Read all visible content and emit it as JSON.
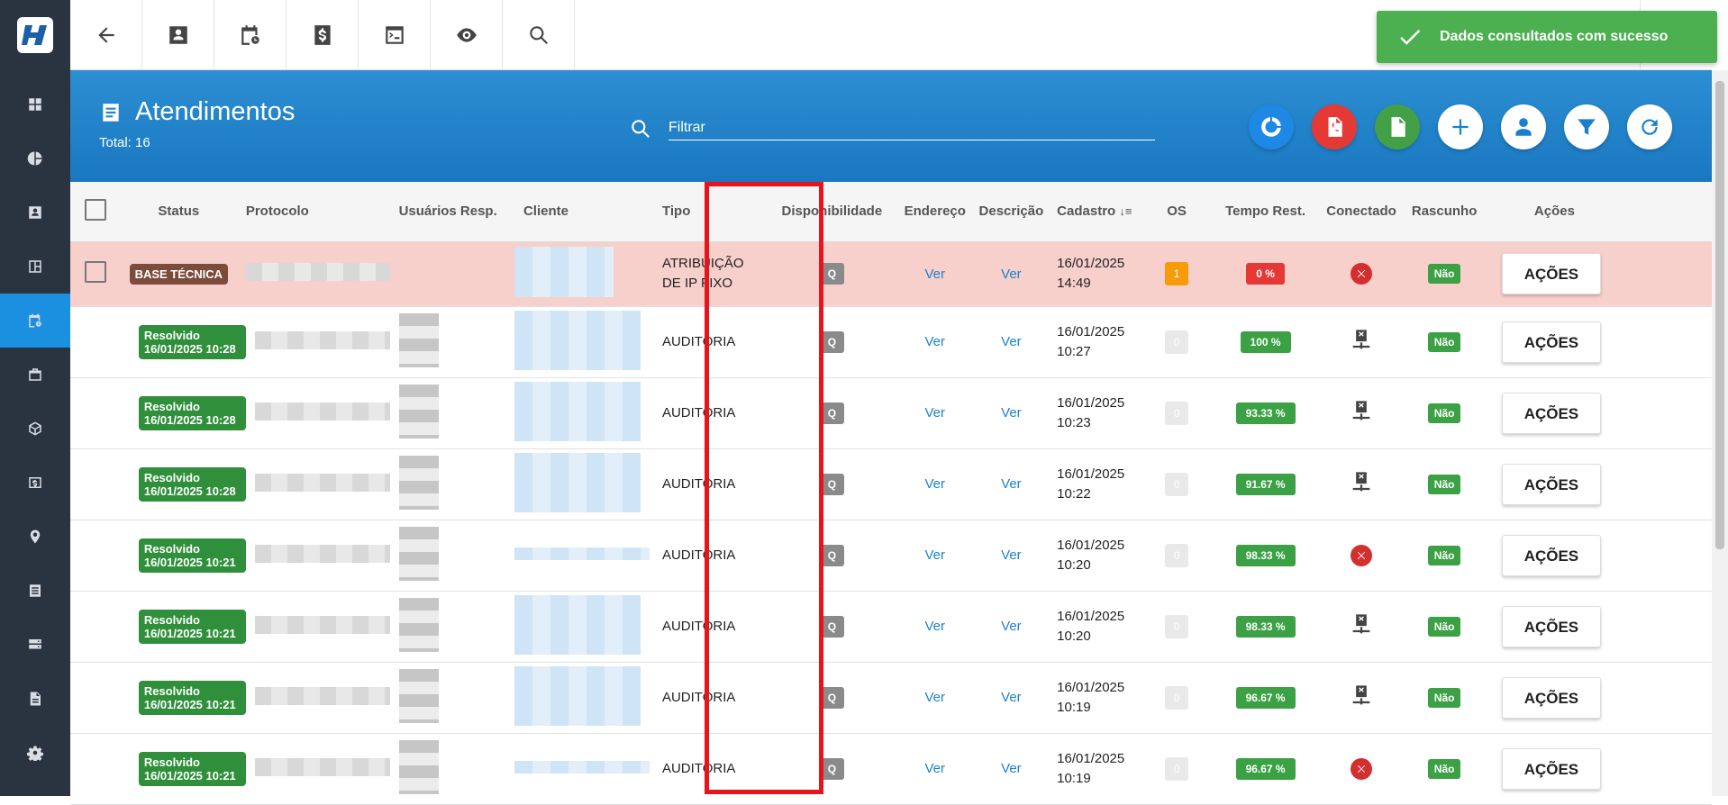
{
  "toast": {
    "text": "Dados consultados com sucesso"
  },
  "header": {
    "title": "Atendimentos",
    "total": "Total: 16",
    "filter_placeholder": "Filtrar"
  },
  "columns": {
    "status": "Status",
    "protocolo": "Protocolo",
    "usuarios": "Usuários Resp.",
    "cliente": "Cliente",
    "tipo": "Tipo",
    "disponibilidade": "Disponibilidade",
    "endereco": "Endereço",
    "descricao": "Descrição",
    "cadastro": "Cadastro",
    "os": "OS",
    "tempo": "Tempo Rest.",
    "conectado": "Conectado",
    "rascunho": "Rascunho",
    "acoes": "Ações"
  },
  "rows": [
    {
      "status": "BASE TÉCNICA",
      "tipo": "ATRIBUIÇÃO DE IP FIXO",
      "disp": "Q",
      "endereco": "Ver",
      "descricao": "Ver",
      "cad_date": "16/01/2025",
      "cad_time": "14:49",
      "os": "1",
      "tempo": "0 %",
      "conectado": "offline-red",
      "rascunho": "Não",
      "acoes": "AÇÕES"
    },
    {
      "status": "Resolvido 16/01/2025 10:28",
      "tipo": "AUDITORIA",
      "disp": "Q",
      "endereco": "Ver",
      "descricao": "Ver",
      "cad_date": "16/01/2025",
      "cad_time": "10:27",
      "os": "0",
      "tempo": "100 %",
      "conectado": "network-x",
      "rascunho": "Não",
      "acoes": "AÇÕES"
    },
    {
      "status": "Resolvido 16/01/2025 10:28",
      "tipo": "AUDITORIA",
      "disp": "Q",
      "endereco": "Ver",
      "descricao": "Ver",
      "cad_date": "16/01/2025",
      "cad_time": "10:23",
      "os": "0",
      "tempo": "93.33 %",
      "conectado": "network-x",
      "rascunho": "Não",
      "acoes": "AÇÕES"
    },
    {
      "status": "Resolvido 16/01/2025 10:28",
      "tipo": "AUDITORIA",
      "disp": "Q",
      "endereco": "Ver",
      "descricao": "Ver",
      "cad_date": "16/01/2025",
      "cad_time": "10:22",
      "os": "0",
      "tempo": "91.67 %",
      "conectado": "network-x",
      "rascunho": "Não",
      "acoes": "AÇÕES"
    },
    {
      "status": "Resolvido 16/01/2025 10:21",
      "tipo": "AUDITORIA",
      "disp": "Q",
      "endereco": "Ver",
      "descricao": "Ver",
      "cad_date": "16/01/2025",
      "cad_time": "10:20",
      "os": "0",
      "tempo": "98.33 %",
      "conectado": "offline-red",
      "rascunho": "Não",
      "acoes": "AÇÕES"
    },
    {
      "status": "Resolvido 16/01/2025 10:21",
      "tipo": "AUDITORIA",
      "disp": "Q",
      "endereco": "Ver",
      "descricao": "Ver",
      "cad_date": "16/01/2025",
      "cad_time": "10:20",
      "os": "0",
      "tempo": "98.33 %",
      "conectado": "network-x",
      "rascunho": "Não",
      "acoes": "AÇÕES"
    },
    {
      "status": "Resolvido 16/01/2025 10:21",
      "tipo": "AUDITORIA",
      "disp": "Q",
      "endereco": "Ver",
      "descricao": "Ver",
      "cad_date": "16/01/2025",
      "cad_time": "10:19",
      "os": "0",
      "tempo": "96.67 %",
      "conectado": "network-x",
      "rascunho": "Não",
      "acoes": "AÇÕES"
    },
    {
      "status": "Resolvido 16/01/2025 10:21",
      "tipo": "AUDITORIA",
      "disp": "Q",
      "endereco": "Ver",
      "descricao": "Ver",
      "cad_date": "16/01/2025",
      "cad_time": "10:19",
      "os": "0",
      "tempo": "96.67 %",
      "conectado": "offline-red",
      "rascunho": "Não",
      "acoes": "AÇÕES"
    }
  ]
}
